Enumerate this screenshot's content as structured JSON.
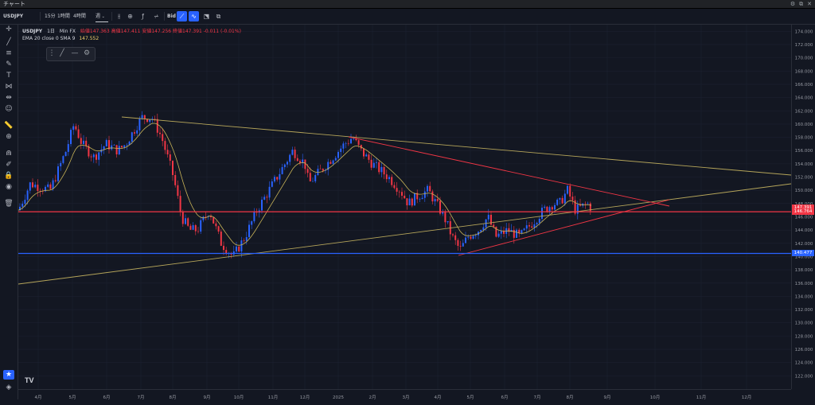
{
  "window": {
    "title": "チャート",
    "buttons": [
      "⚙",
      "⧉",
      "✕"
    ]
  },
  "toolbar": {
    "symbol": "USDJPY",
    "intervals": [
      "15分",
      "1時間",
      "4時間"
    ],
    "period": "週",
    "price_type": "Bid"
  },
  "legend": {
    "line1": {
      "symbol": "USDJPY",
      "interval": "1日",
      "source": "Min FX",
      "ohlc": "始値147.363 高値147.411 安値147.256 終値147.391 -0.011 (-0.01%)"
    },
    "line2": {
      "label": "EMA 20 close 0 SMA 9",
      "value": "147.552"
    }
  },
  "y_axis": {
    "labels": [
      "174.000",
      "172.000",
      "170.000",
      "168.000",
      "166.000",
      "164.000",
      "162.000",
      "160.000",
      "158.000",
      "156.000",
      "154.000",
      "152.000",
      "150.000",
      "148.000",
      "146.000",
      "144.000",
      "142.000",
      "140.000",
      "138.000",
      "136.000",
      "134.000",
      "132.000",
      "130.000",
      "128.000",
      "126.000",
      "124.000",
      "122.000"
    ],
    "price_tags": [
      {
        "text": "147.391",
        "price": 147.391,
        "color": "#f23645"
      },
      {
        "text": "146.764",
        "price": 146.764,
        "color": "#f23645"
      },
      {
        "text": "140.477",
        "price": 140.477,
        "color": "#2962ff"
      }
    ]
  },
  "x_axis": {
    "labels": [
      "4月",
      "5月",
      "6月",
      "7月",
      "8月",
      "9月",
      "10月",
      "11月",
      "12月",
      "2025",
      "2月",
      "3月",
      "4月",
      "5月",
      "6月",
      "7月",
      "8月",
      "9月",
      "10月",
      "11月",
      "12月"
    ]
  },
  "horizontal_lines": [
    {
      "price": 146.764,
      "color": "#f23645"
    },
    {
      "price": 140.477,
      "color": "#2962ff"
    }
  ],
  "colors": {
    "up": "#2962ff",
    "down": "#f23645",
    "ema": "#c9b458",
    "yellow_trend": "#b5a55a",
    "red_trend": "#f23645"
  },
  "left_tools": [
    "crosshair-icon",
    "trendline-icon",
    "fib-icon",
    "brush-icon",
    "text-icon",
    "pattern-icon",
    "measure-icon",
    "emoji-icon",
    "ruler-icon",
    "zoom-icon",
    "magnet-icon",
    "lock-drawing-icon",
    "lock-icon",
    "eye-icon",
    "trash-icon"
  ],
  "floating_toolbar": [
    "drag-handle-icon",
    "pen-icon",
    "line-icon",
    "settings-icon"
  ],
  "brand": "TV"
}
